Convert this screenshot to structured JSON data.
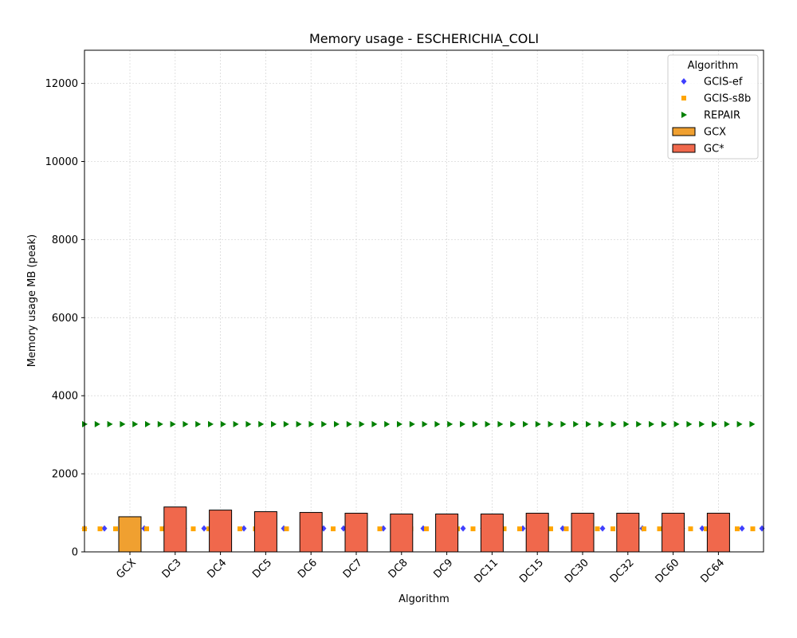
{
  "chart_data": {
    "type": "bar",
    "title": "Memory usage -  ESCHERICHIA_COLI",
    "xlabel": "Algorithm",
    "ylabel": "Memory usage MB (peak)",
    "ylim": [
      0,
      12850
    ],
    "yticks": [
      0,
      2000,
      4000,
      6000,
      8000,
      10000,
      12000
    ],
    "grid": true,
    "legend_position": "top-right",
    "legend_title": "Algorithm",
    "categories": [
      "GCX",
      "DC3",
      "DC4",
      "DC5",
      "DC6",
      "DC7",
      "DC8",
      "DC9",
      "DC11",
      "DC15",
      "DC30",
      "DC32",
      "DC60",
      "DC64"
    ],
    "bars": [
      {
        "category": "GCX",
        "value": 900,
        "series": "GCX"
      },
      {
        "category": "DC3",
        "value": 1150,
        "series": "GC*"
      },
      {
        "category": "DC4",
        "value": 1070,
        "series": "GC*"
      },
      {
        "category": "DC5",
        "value": 1030,
        "series": "GC*"
      },
      {
        "category": "DC6",
        "value": 1010,
        "series": "GC*"
      },
      {
        "category": "DC7",
        "value": 990,
        "series": "GC*"
      },
      {
        "category": "DC8",
        "value": 970,
        "series": "GC*"
      },
      {
        "category": "DC9",
        "value": 970,
        "series": "GC*"
      },
      {
        "category": "DC11",
        "value": 970,
        "series": "GC*"
      },
      {
        "category": "DC15",
        "value": 990,
        "series": "GC*"
      },
      {
        "category": "DC30",
        "value": 990,
        "series": "GC*"
      },
      {
        "category": "DC32",
        "value": 990,
        "series": "GC*"
      },
      {
        "category": "DC60",
        "value": 990,
        "series": "GC*"
      },
      {
        "category": "DC64",
        "value": 990,
        "series": "GC*"
      }
    ],
    "reference_lines": [
      {
        "name": "GCIS-ef",
        "value": 600,
        "color": "#3f3fff",
        "marker": "diamond"
      },
      {
        "name": "GCIS-s8b",
        "value": 590,
        "color": "#ffa500",
        "marker": "square"
      },
      {
        "name": "REPAIR",
        "value": 3270,
        "color": "#008000",
        "marker": "triangle-right"
      }
    ],
    "bar_series": [
      {
        "name": "GCX",
        "color": "#f0a030"
      },
      {
        "name": "GC*",
        "color": "#f0684c"
      }
    ]
  }
}
